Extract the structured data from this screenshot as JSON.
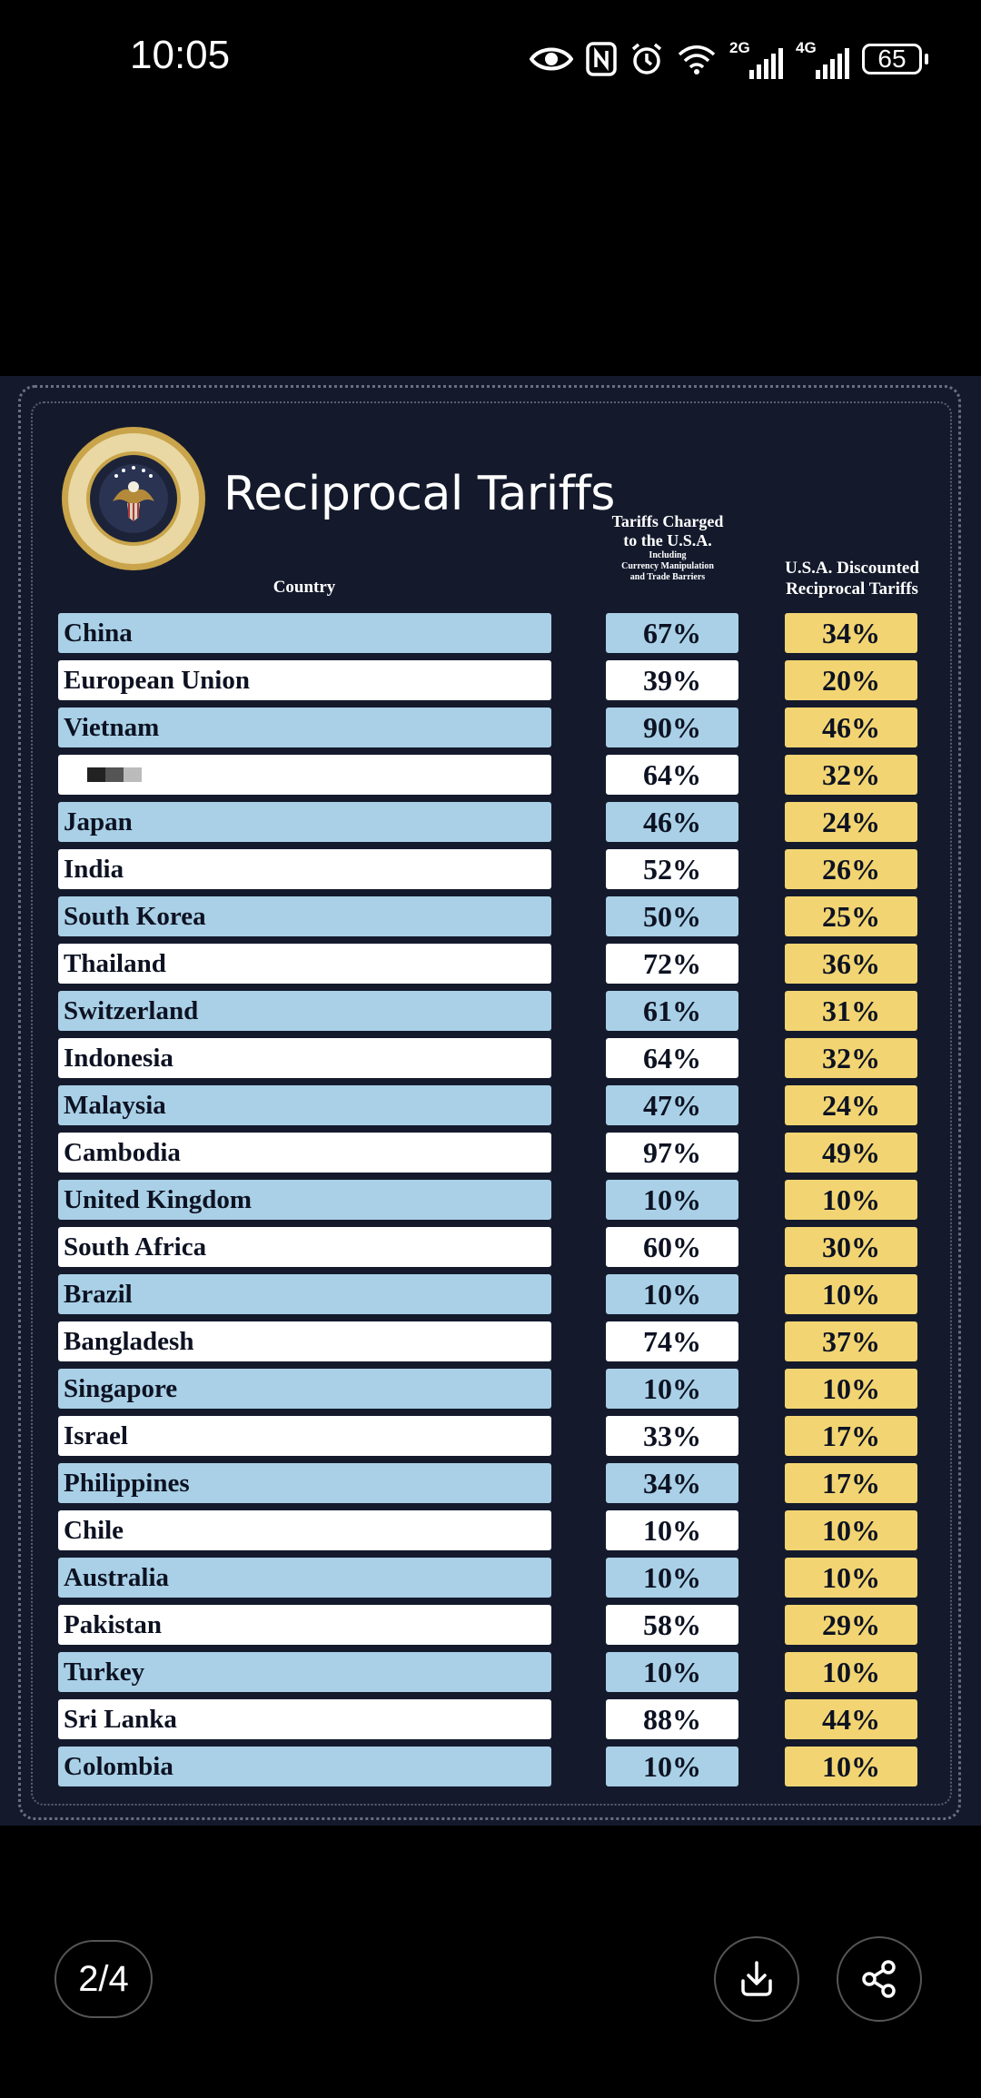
{
  "status_bar": {
    "time": "10:05",
    "battery": "65",
    "net1": "2G",
    "net2": "4G"
  },
  "poster": {
    "title": "Reciprocal Tariffs",
    "headers": {
      "country": "Country",
      "charged_line1": "Tariffs Charged",
      "charged_line2": "to the U.S.A.",
      "charged_small1": "Including",
      "charged_small2": "Currency Manipulation",
      "charged_small3": "and Trade Barriers",
      "discounted_line1": "U.S.A. Discounted",
      "discounted_line2": "Reciprocal Tariffs"
    },
    "rows": [
      {
        "country": "China",
        "charged": "67%",
        "discounted": "34%"
      },
      {
        "country": "European Union",
        "charged": "39%",
        "discounted": "20%"
      },
      {
        "country": "Vietnam",
        "charged": "90%",
        "discounted": "46%"
      },
      {
        "country": "",
        "charged": "64%",
        "discounted": "32%"
      },
      {
        "country": "Japan",
        "charged": "46%",
        "discounted": "24%"
      },
      {
        "country": "India",
        "charged": "52%",
        "discounted": "26%"
      },
      {
        "country": "South Korea",
        "charged": "50%",
        "discounted": "25%"
      },
      {
        "country": "Thailand",
        "charged": "72%",
        "discounted": "36%"
      },
      {
        "country": "Switzerland",
        "charged": "61%",
        "discounted": "31%"
      },
      {
        "country": "Indonesia",
        "charged": "64%",
        "discounted": "32%"
      },
      {
        "country": "Malaysia",
        "charged": "47%",
        "discounted": "24%"
      },
      {
        "country": "Cambodia",
        "charged": "97%",
        "discounted": "49%"
      },
      {
        "country": "United Kingdom",
        "charged": "10%",
        "discounted": "10%"
      },
      {
        "country": "South Africa",
        "charged": "60%",
        "discounted": "30%"
      },
      {
        "country": "Brazil",
        "charged": "10%",
        "discounted": "10%"
      },
      {
        "country": "Bangladesh",
        "charged": "74%",
        "discounted": "37%"
      },
      {
        "country": "Singapore",
        "charged": "10%",
        "discounted": "10%"
      },
      {
        "country": "Israel",
        "charged": "33%",
        "discounted": "17%"
      },
      {
        "country": "Philippines",
        "charged": "34%",
        "discounted": "17%"
      },
      {
        "country": "Chile",
        "charged": "10%",
        "discounted": "10%"
      },
      {
        "country": "Australia",
        "charged": "10%",
        "discounted": "10%"
      },
      {
        "country": "Pakistan",
        "charged": "58%",
        "discounted": "29%"
      },
      {
        "country": "Turkey",
        "charged": "10%",
        "discounted": "10%"
      },
      {
        "country": "Sri Lanka",
        "charged": "88%",
        "discounted": "44%"
      },
      {
        "country": "Colombia",
        "charged": "10%",
        "discounted": "10%"
      }
    ]
  },
  "viewer": {
    "page_indicator": "2/4"
  },
  "colors": {
    "poster_bg": "#141a2c",
    "row_blue": "#a9d0e6",
    "row_white": "#ffffff",
    "discount_gold": "#f2d572"
  },
  "icons": [
    "eye-icon",
    "nfc-icon",
    "alarm-icon",
    "wifi-icon",
    "signal-icon",
    "battery-icon",
    "presidential-seal-icon",
    "download-icon",
    "share-icon"
  ]
}
